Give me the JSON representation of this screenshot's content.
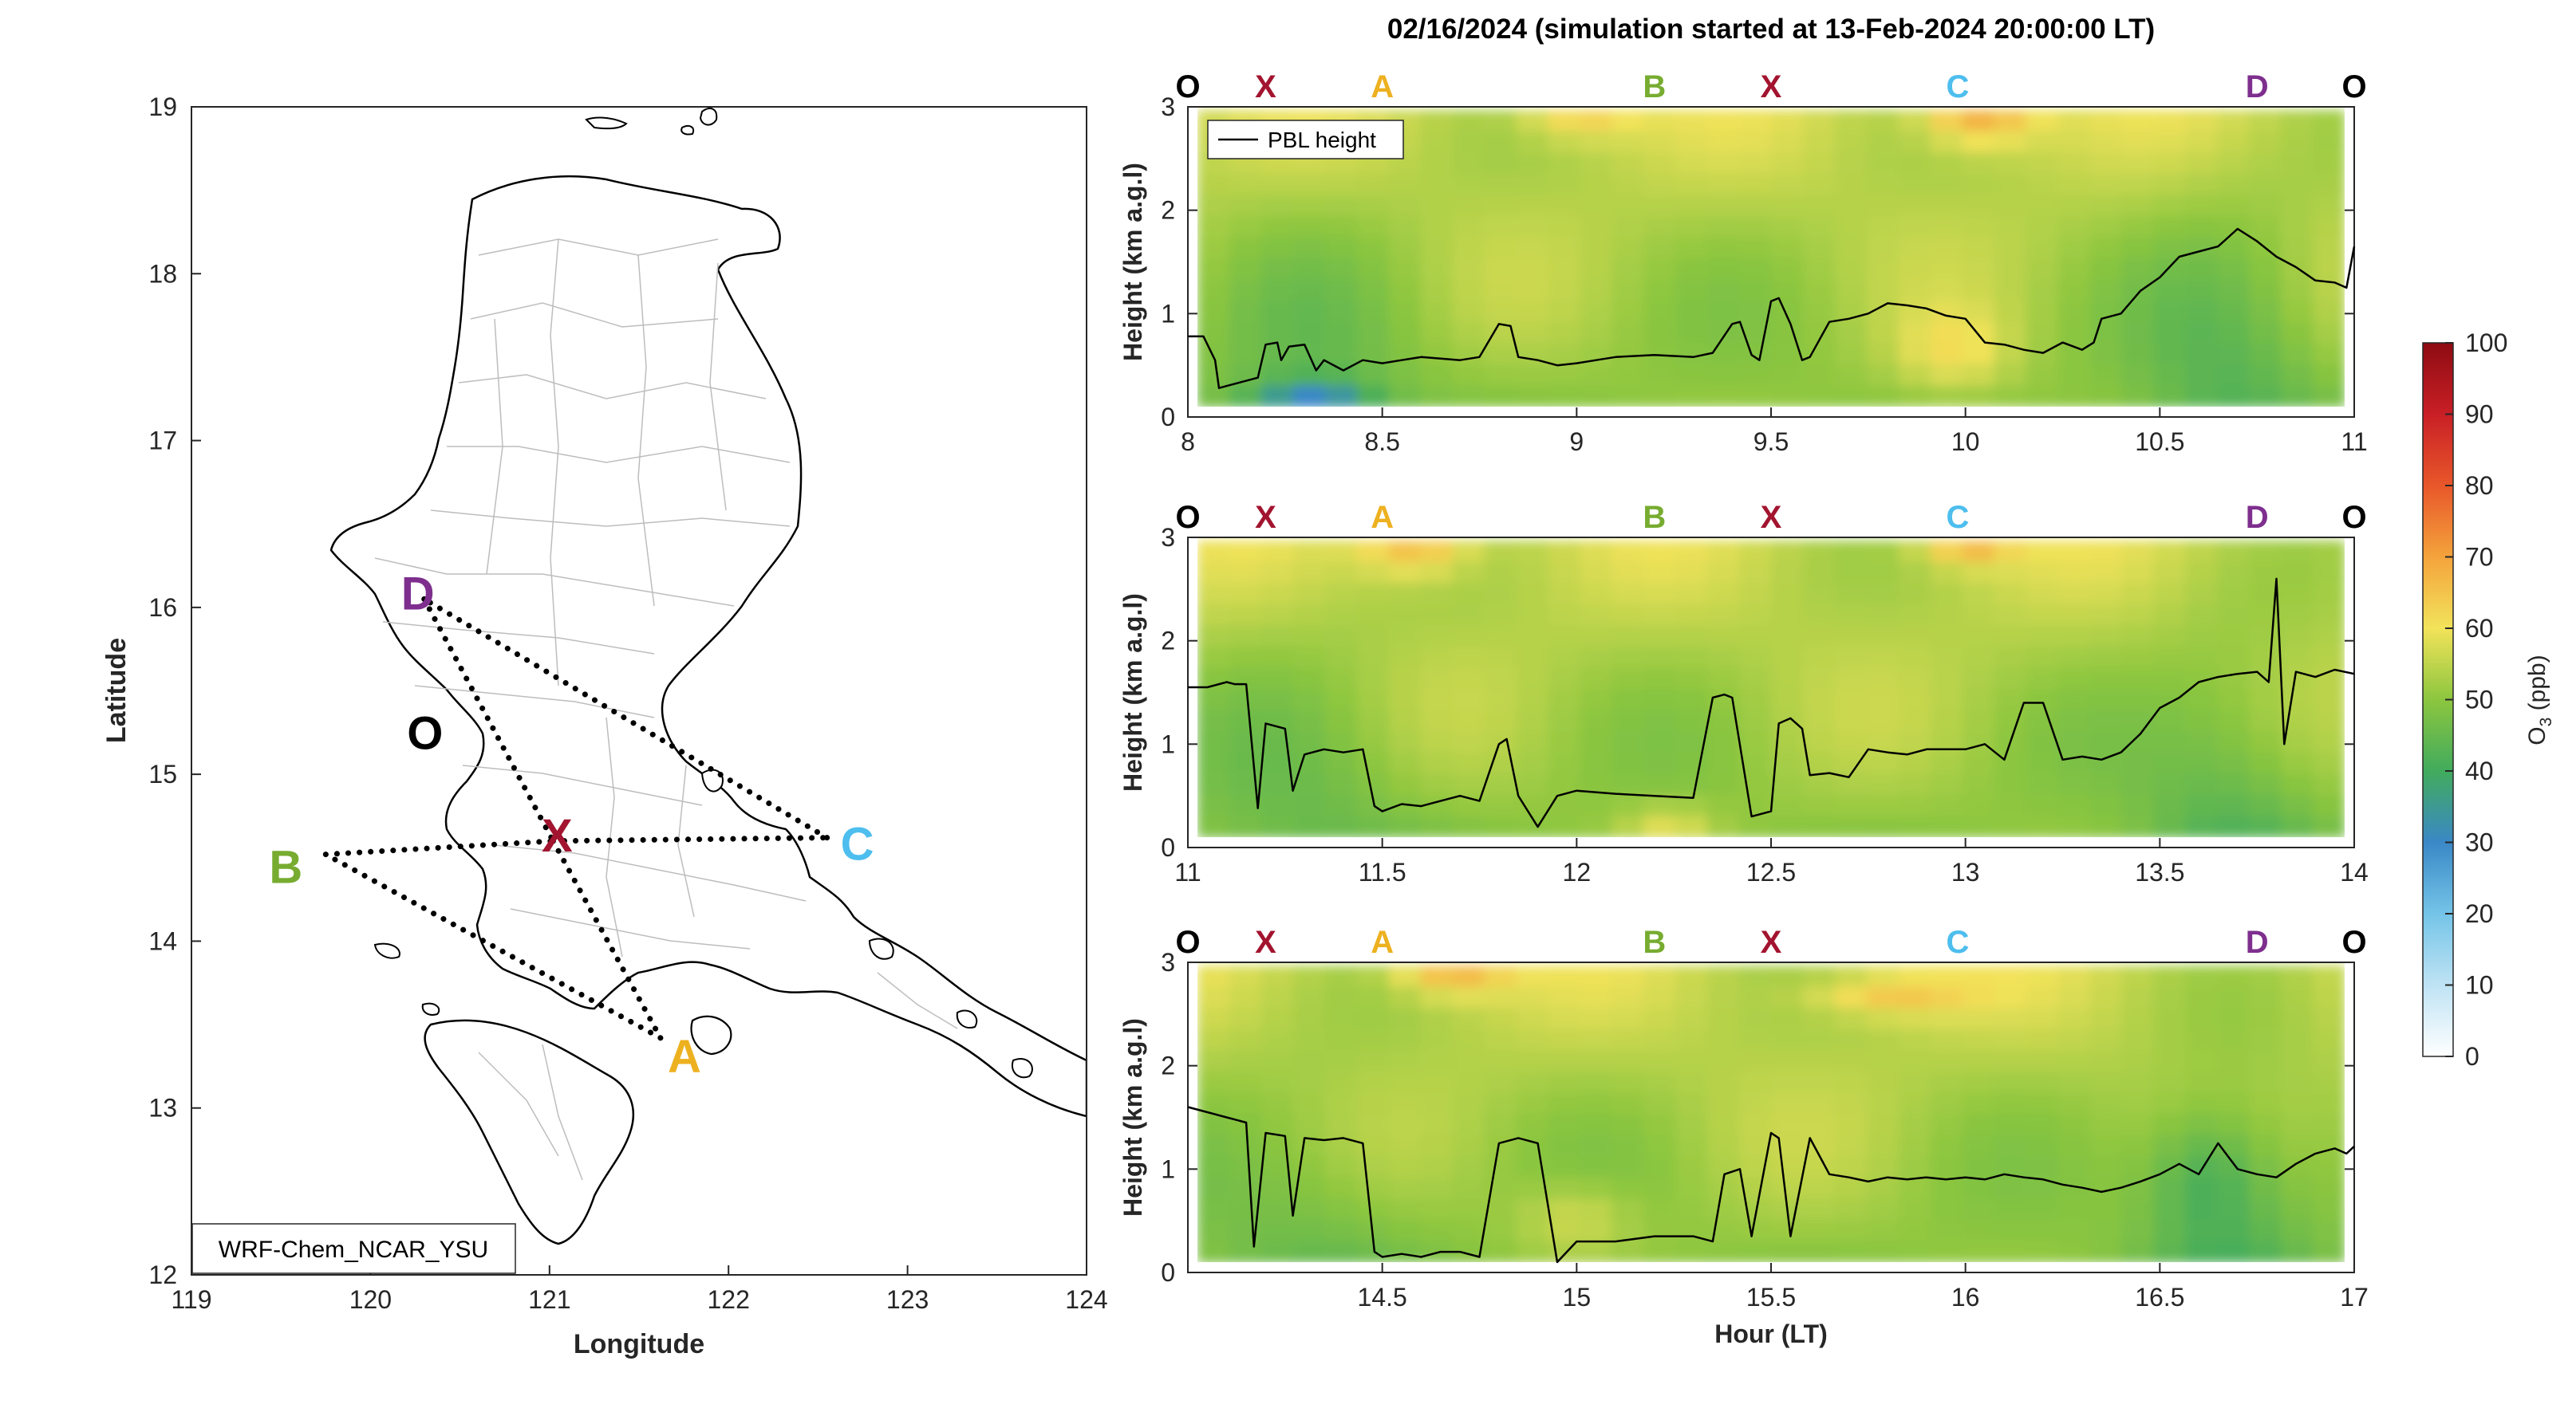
{
  "colors": {
    "O": "#000000",
    "X": "#a2142f",
    "A": "#edb120",
    "B": "#77ac30",
    "C": "#4dbeee",
    "D": "#7e2f8e",
    "pbl_line": "#000000",
    "route": "#000000",
    "map_outline": "#000000",
    "map_internal": "#bdbdbd"
  },
  "figure_title": "02/16/2024 (simulation started at 13-Feb-2024 20:00:00 LT)",
  "map": {
    "xlabel": "Longitude",
    "ylabel": "Latitude",
    "xticks": [
      "119",
      "120",
      "121",
      "122",
      "123",
      "124"
    ],
    "yticks": [
      "12",
      "13",
      "14",
      "15",
      "16",
      "17",
      "18",
      "19"
    ],
    "model_label": "WRF-Chem_NCAR_YSU",
    "points": [
      {
        "id": "D",
        "label": "D",
        "lon": 120.3,
        "lat": 16.05
      },
      {
        "id": "O",
        "label": "O",
        "lon": 120.55,
        "lat": 15.18
      },
      {
        "id": "X",
        "label": "X",
        "lon": 121.02,
        "lat": 14.6
      },
      {
        "id": "C",
        "label": "C",
        "lon": 122.55,
        "lat": 14.62
      },
      {
        "id": "B",
        "label": "B",
        "lon": 119.75,
        "lat": 14.52
      },
      {
        "id": "A",
        "label": "A",
        "lon": 121.62,
        "lat": 13.42
      }
    ],
    "route": [
      "D",
      "X",
      "A",
      "B",
      "X",
      "C",
      "D"
    ]
  },
  "colorbar": {
    "label": "O3 (ppb)",
    "label_main": "O",
    "label_sub": "3",
    "label_rest": " (ppb)",
    "ticks": [
      "0",
      "10",
      "20",
      "30",
      "40",
      "50",
      "60",
      "70",
      "80",
      "90",
      "100"
    ],
    "range": [
      0,
      100
    ]
  },
  "chart_data": [
    {
      "type": "heatmap",
      "ylabel": "Height (km a.g.l)",
      "xlim": [
        8,
        11
      ],
      "ylim": [
        0,
        3
      ],
      "xticks": [
        "8",
        "8.5",
        "9",
        "9.5",
        "10",
        "10.5",
        "11"
      ],
      "yticks": [
        "0",
        "1",
        "2",
        "3"
      ],
      "legend": "PBL height",
      "legend_position": "top-left",
      "site_labels": [
        {
          "label": "O",
          "x": 8.0
        },
        {
          "label": "X",
          "x": 8.2
        },
        {
          "label": "A",
          "x": 8.5
        },
        {
          "label": "B",
          "x": 9.2
        },
        {
          "label": "X",
          "x": 9.5
        },
        {
          "label": "C",
          "x": 9.98
        },
        {
          "label": "D",
          "x": 10.75
        },
        {
          "label": "O",
          "x": 11.0
        }
      ],
      "pbl_x": [
        8.0,
        8.04,
        8.07,
        8.08,
        8.1,
        8.15,
        8.18,
        8.2,
        8.23,
        8.24,
        8.26,
        8.3,
        8.33,
        8.35,
        8.4,
        8.45,
        8.5,
        8.55,
        8.6,
        8.7,
        8.75,
        8.8,
        8.83,
        8.85,
        8.9,
        8.95,
        9.0,
        9.05,
        9.1,
        9.2,
        9.3,
        9.35,
        9.4,
        9.42,
        9.45,
        9.47,
        9.5,
        9.52,
        9.55,
        9.58,
        9.6,
        9.65,
        9.7,
        9.75,
        9.8,
        9.85,
        9.9,
        9.95,
        10.0,
        10.05,
        10.1,
        10.15,
        10.2,
        10.25,
        10.3,
        10.33,
        10.35,
        10.4,
        10.45,
        10.5,
        10.55,
        10.6,
        10.65,
        10.7,
        10.75,
        10.8,
        10.85,
        10.9,
        10.95,
        10.98,
        11.0
      ],
      "pbl_y": [
        0.78,
        0.78,
        0.55,
        0.28,
        0.3,
        0.35,
        0.38,
        0.7,
        0.72,
        0.55,
        0.68,
        0.7,
        0.45,
        0.55,
        0.45,
        0.55,
        0.52,
        0.55,
        0.58,
        0.55,
        0.58,
        0.9,
        0.88,
        0.58,
        0.55,
        0.5,
        0.52,
        0.55,
        0.58,
        0.6,
        0.58,
        0.62,
        0.9,
        0.92,
        0.6,
        0.55,
        1.12,
        1.15,
        0.9,
        0.55,
        0.58,
        0.92,
        0.95,
        1.0,
        1.1,
        1.08,
        1.05,
        0.98,
        0.95,
        0.72,
        0.7,
        0.65,
        0.62,
        0.72,
        0.65,
        0.72,
        0.95,
        1.0,
        1.22,
        1.35,
        1.55,
        1.6,
        1.65,
        1.82,
        1.7,
        1.55,
        1.45,
        1.32,
        1.3,
        1.25,
        1.65
      ]
    },
    {
      "type": "heatmap",
      "ylabel": "Height (km a.g.l)",
      "xlim": [
        11,
        14
      ],
      "ylim": [
        0,
        3
      ],
      "xticks": [
        "11",
        "11.5",
        "12",
        "12.5",
        "13",
        "13.5",
        "14"
      ],
      "yticks": [
        "0",
        "1",
        "2",
        "3"
      ],
      "site_labels": [
        {
          "label": "O",
          "x": 11.0
        },
        {
          "label": "X",
          "x": 11.2
        },
        {
          "label": "A",
          "x": 11.5
        },
        {
          "label": "B",
          "x": 12.2
        },
        {
          "label": "X",
          "x": 12.5
        },
        {
          "label": "C",
          "x": 12.98
        },
        {
          "label": "D",
          "x": 13.75
        },
        {
          "label": "O",
          "x": 14.0
        }
      ],
      "pbl_x": [
        11.0,
        11.05,
        11.1,
        11.12,
        11.15,
        11.18,
        11.2,
        11.25,
        11.27,
        11.3,
        11.35,
        11.4,
        11.45,
        11.48,
        11.5,
        11.55,
        11.6,
        11.65,
        11.7,
        11.75,
        11.8,
        11.82,
        11.85,
        11.9,
        11.95,
        12.0,
        12.1,
        12.2,
        12.3,
        12.35,
        12.38,
        12.4,
        12.45,
        12.5,
        12.52,
        12.55,
        12.58,
        12.6,
        12.65,
        12.7,
        12.75,
        12.8,
        12.85,
        12.9,
        12.95,
        13.0,
        13.05,
        13.1,
        13.15,
        13.2,
        13.25,
        13.3,
        13.35,
        13.4,
        13.45,
        13.5,
        13.55,
        13.6,
        13.65,
        13.7,
        13.75,
        13.78,
        13.8,
        13.82,
        13.85,
        13.9,
        13.95,
        14.0
      ],
      "pbl_y": [
        1.55,
        1.55,
        1.6,
        1.58,
        1.58,
        0.38,
        1.2,
        1.15,
        0.55,
        0.9,
        0.95,
        0.92,
        0.95,
        0.4,
        0.35,
        0.42,
        0.4,
        0.45,
        0.5,
        0.45,
        1.0,
        1.05,
        0.5,
        0.2,
        0.5,
        0.55,
        0.52,
        0.5,
        0.48,
        1.45,
        1.48,
        1.45,
        0.3,
        0.35,
        1.2,
        1.25,
        1.15,
        0.7,
        0.72,
        0.68,
        0.95,
        0.92,
        0.9,
        0.95,
        0.95,
        0.95,
        1.0,
        0.85,
        1.4,
        1.4,
        0.85,
        0.88,
        0.85,
        0.92,
        1.1,
        1.35,
        1.45,
        1.6,
        1.65,
        1.68,
        1.7,
        1.6,
        2.6,
        1.0,
        1.7,
        1.65,
        1.72,
        1.68
      ]
    },
    {
      "type": "heatmap",
      "ylabel": "Height (km a.g.l)",
      "xlabel": "Hour (LT)",
      "xlim": [
        14,
        17
      ],
      "ylim": [
        0,
        3
      ],
      "xticks": [
        "14.5",
        "15",
        "15.5",
        "16",
        "16.5",
        "17"
      ],
      "xtick_values": [
        14.5,
        15.0,
        15.5,
        16.0,
        16.5,
        17.0
      ],
      "yticks": [
        "0",
        "1",
        "2",
        "3"
      ],
      "site_labels": [
        {
          "label": "O",
          "x": 14.0
        },
        {
          "label": "X",
          "x": 14.2
        },
        {
          "label": "A",
          "x": 14.5
        },
        {
          "label": "B",
          "x": 15.2
        },
        {
          "label": "X",
          "x": 15.5
        },
        {
          "label": "C",
          "x": 15.98
        },
        {
          "label": "D",
          "x": 16.75
        },
        {
          "label": "O",
          "x": 17.0
        }
      ],
      "pbl_x": [
        14.0,
        14.05,
        14.1,
        14.12,
        14.15,
        14.17,
        14.2,
        14.25,
        14.27,
        14.3,
        14.35,
        14.4,
        14.45,
        14.48,
        14.5,
        14.55,
        14.6,
        14.65,
        14.7,
        14.75,
        14.8,
        14.85,
        14.9,
        14.95,
        15.0,
        15.1,
        15.2,
        15.3,
        15.35,
        15.38,
        15.42,
        15.45,
        15.5,
        15.52,
        15.55,
        15.6,
        15.65,
        15.7,
        15.75,
        15.8,
        15.85,
        15.9,
        15.95,
        16.0,
        16.05,
        16.1,
        16.15,
        16.2,
        16.25,
        16.3,
        16.35,
        16.4,
        16.45,
        16.5,
        16.55,
        16.6,
        16.65,
        16.7,
        16.75,
        16.8,
        16.85,
        16.9,
        16.95,
        16.98,
        17.0
      ],
      "pbl_y": [
        1.6,
        1.55,
        1.5,
        1.48,
        1.45,
        0.25,
        1.35,
        1.32,
        0.55,
        1.3,
        1.28,
        1.3,
        1.25,
        0.2,
        0.15,
        0.18,
        0.15,
        0.2,
        0.2,
        0.15,
        1.25,
        1.3,
        1.25,
        0.1,
        0.3,
        0.3,
        0.35,
        0.35,
        0.3,
        0.95,
        1.0,
        0.35,
        1.35,
        1.3,
        0.35,
        1.3,
        0.95,
        0.92,
        0.88,
        0.92,
        0.9,
        0.92,
        0.9,
        0.92,
        0.9,
        0.95,
        0.92,
        0.9,
        0.85,
        0.82,
        0.78,
        0.82,
        0.88,
        0.95,
        1.05,
        0.95,
        1.25,
        1.0,
        0.95,
        0.92,
        1.05,
        1.15,
        1.2,
        1.15,
        1.22
      ]
    }
  ]
}
